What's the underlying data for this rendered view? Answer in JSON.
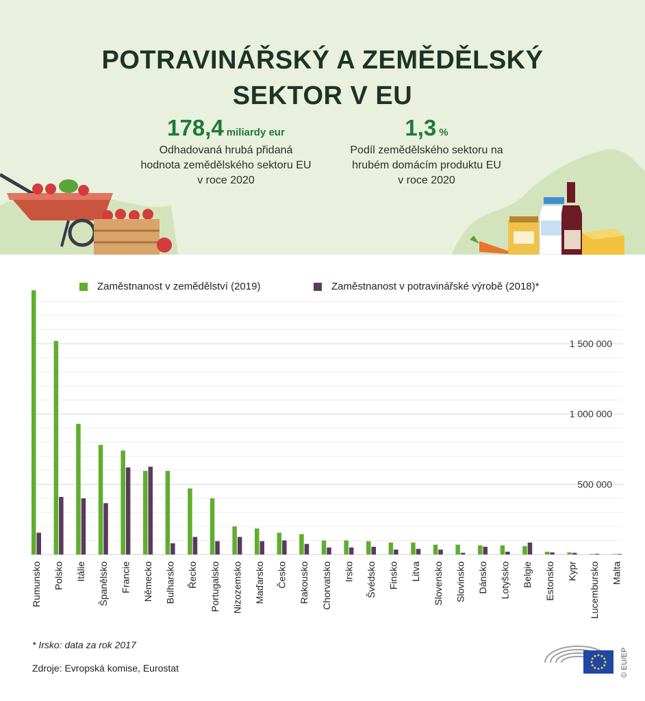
{
  "header": {
    "title_line1": "POTRAVINÁŘSKÝ A ZEMĚDĚLSKÝ",
    "title_line2": "SEKTOR V EU",
    "stat1": {
      "value": "178,4",
      "unit": "miliardy eur",
      "description": "Odhadovaná hrubá přidaná\nhodnota zemědělského sektoru EU\nv roce 2020"
    },
    "stat2": {
      "value": "1,3",
      "unit": "%",
      "description": "Podíl zemědělského sektoru na\nhrubém domácím produktu EU\nv roce 2020"
    }
  },
  "colors": {
    "agriculture": "#5fae2e",
    "food": "#5b3a5e",
    "header_bg": "#e9f0de",
    "accent_green": "#1e7a35"
  },
  "illustrations": [
    "wheelbarrow-illustration",
    "apple-crate-illustration",
    "carrot-illustration",
    "honey-jar-illustration",
    "milk-bottle-illustration",
    "wine-bottle-illustration",
    "cheese-illustration"
  ],
  "footnote": "* Irsko: data za rok 2017",
  "source": "Zdroje: Evropská komise, Eurostat",
  "copyright": "© EU/EP",
  "chart_data": {
    "type": "bar",
    "categories": [
      "Rumunsko",
      "Polsko",
      "Itálie",
      "Španělsko",
      "Francie",
      "Německo",
      "Bulharsko",
      "Řecko",
      "Portugalsko",
      "Nizozemsko",
      "Maďarsko",
      "Česko",
      "Rakousko",
      "Chorvatsko",
      "Irsko",
      "Švédsko",
      "Finsko",
      "Litva",
      "Slovensko",
      "Slovinsko",
      "Dánsko",
      "Lotyšsko",
      "Belgie",
      "Estonsko",
      "Kypr",
      "Lucembursko",
      "Malta"
    ],
    "series": [
      {
        "name": "Zaměstnanost v zemědělství (2019)",
        "values": [
          1880000,
          1520000,
          930000,
          780000,
          740000,
          595000,
          595000,
          470000,
          400000,
          200000,
          185000,
          155000,
          145000,
          100000,
          100000,
          95000,
          85000,
          85000,
          70000,
          70000,
          65000,
          65000,
          60000,
          20000,
          15000,
          4000,
          3000
        ]
      },
      {
        "name": "Zaměstnanost v potravinářské výrobě (2018)*",
        "values": [
          155000,
          410000,
          400000,
          365000,
          620000,
          625000,
          80000,
          125000,
          95000,
          125000,
          95000,
          100000,
          75000,
          50000,
          50000,
          55000,
          35000,
          40000,
          35000,
          12000,
          55000,
          20000,
          85000,
          15000,
          12000,
          5000,
          4000
        ]
      }
    ],
    "y_ticks": [
      500000,
      1000000,
      1500000
    ],
    "y_tick_labels": [
      "500 000",
      "1 000 000",
      "1 500 000"
    ],
    "ylim": [
      0,
      1900000
    ],
    "grid": true,
    "legend_position": "top"
  }
}
